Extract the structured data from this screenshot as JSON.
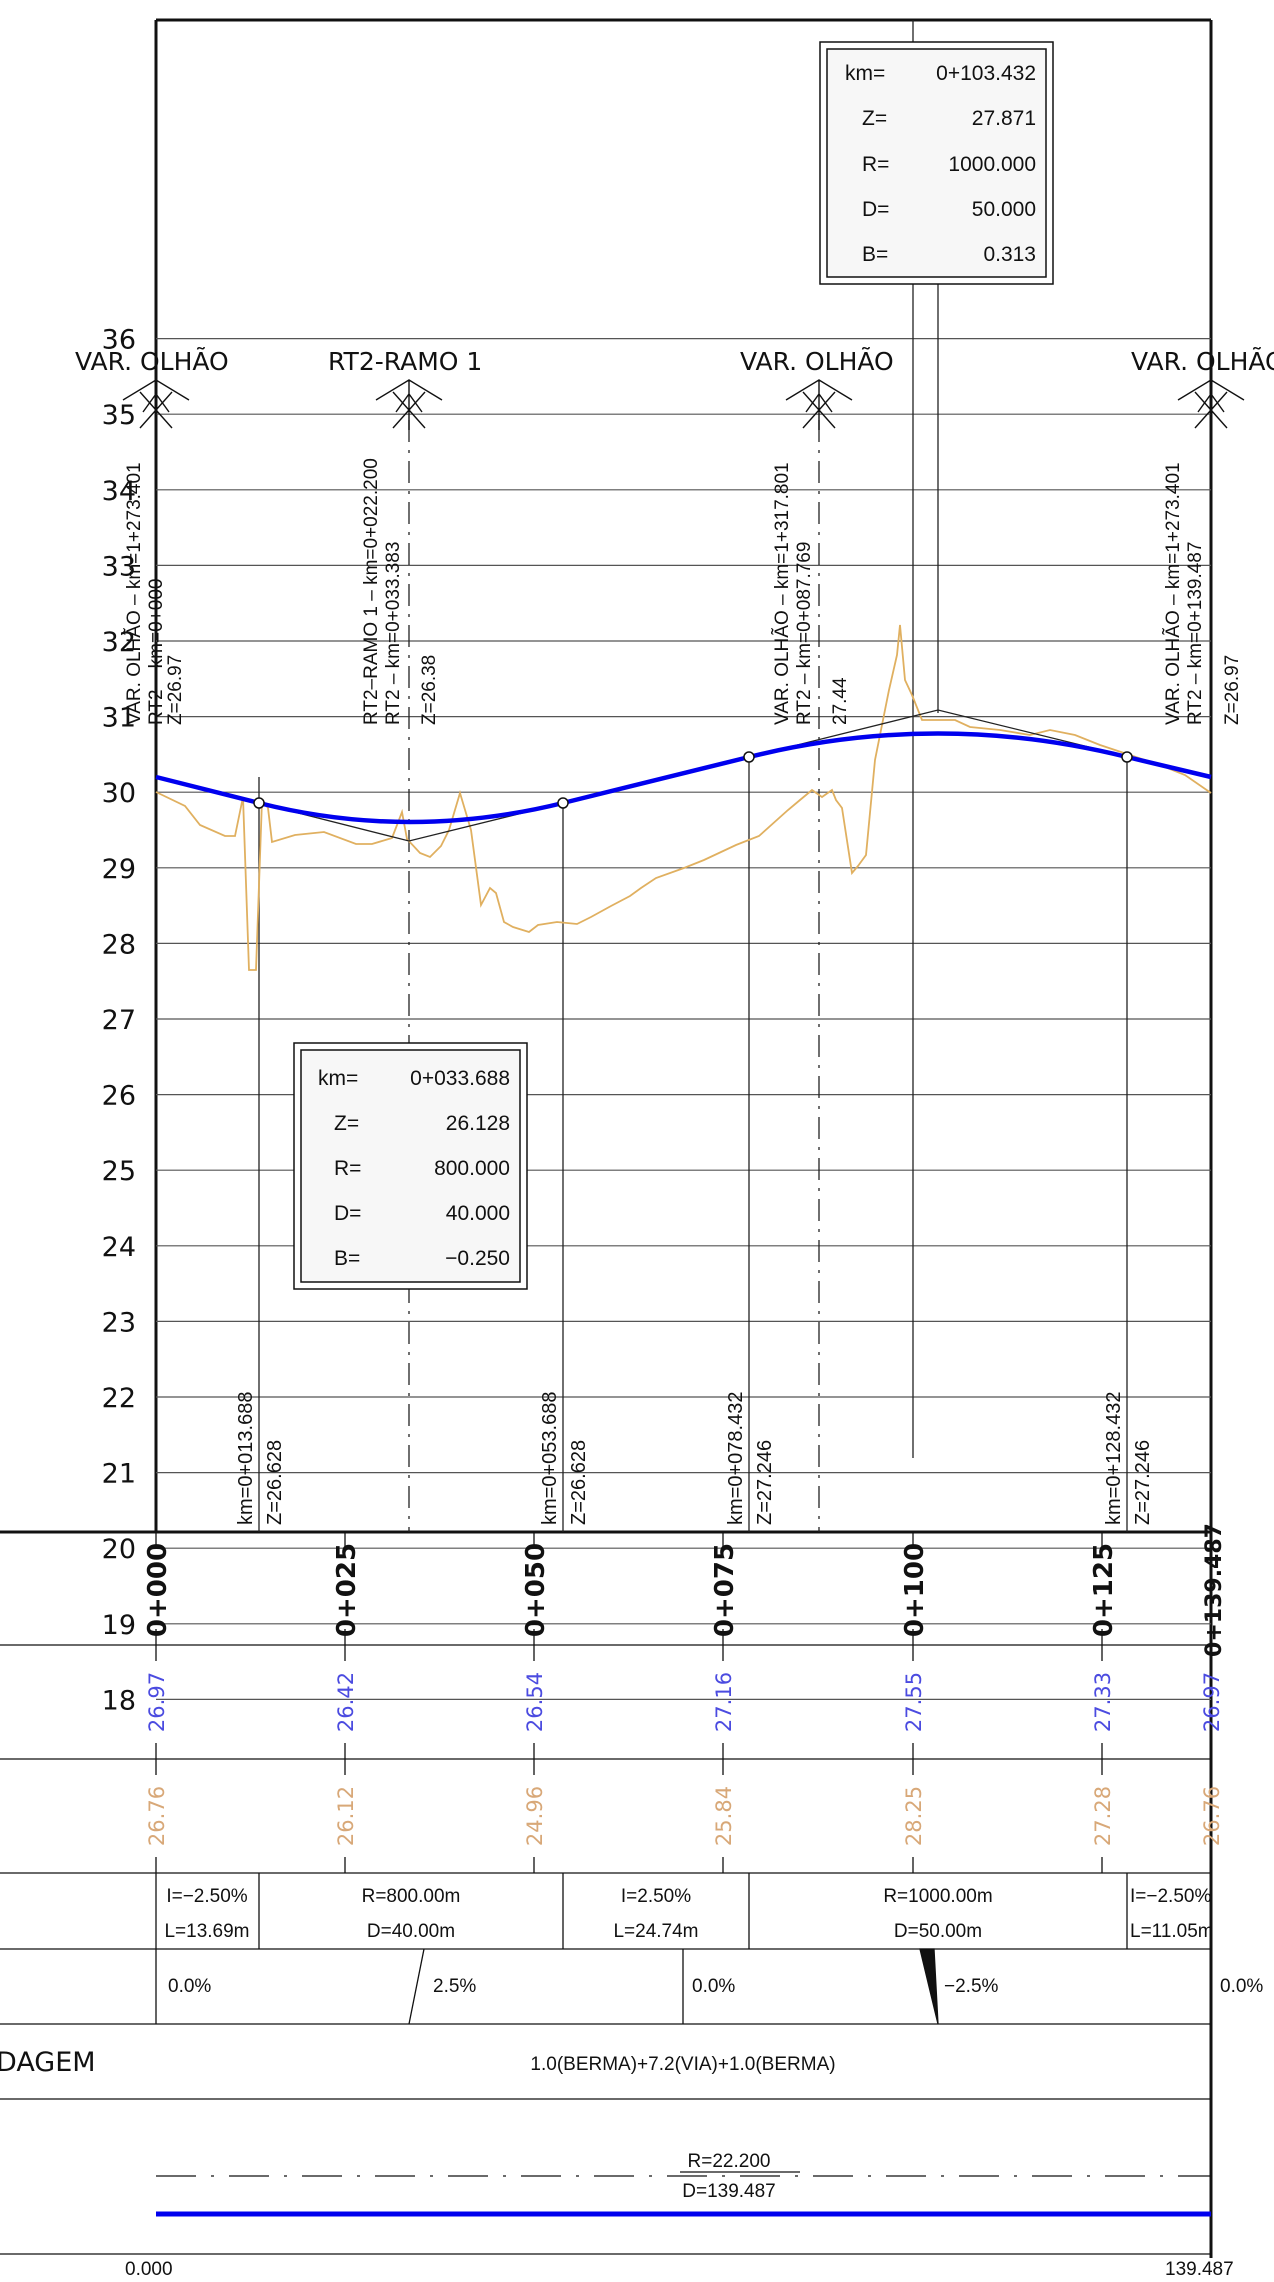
{
  "y_axis_labels": [
    "36",
    "35",
    "34",
    "33",
    "32",
    "31",
    "30",
    "29",
    "28",
    "27",
    "26",
    "25",
    "24",
    "23",
    "22",
    "21",
    "20",
    "19",
    "18"
  ],
  "colors": {
    "grade_line": "#0000ee",
    "terrain_line": "#e0b060",
    "grade_text": "#4b4be0",
    "terrain_text": "#d8a878",
    "ink": "#111111"
  },
  "top_labels": {
    "start": "VAR. OLHÃO",
    "ramo": "RT2-RAMO 1",
    "mid": "VAR. OLHÃO",
    "end": "VAR. OLHÃO"
  },
  "vertical_annotations": {
    "start": [
      "VAR. OLHÃO – km=1+273.401",
      "RT2 – km=0+000",
      "Z=26.97"
    ],
    "ramo": [
      "RT2–RAMO 1 – km=0+022.200",
      "RT2 – km=0+033.383",
      "Z=26.38"
    ],
    "mid": [
      "VAR. OLHÃO – km=1+317.801",
      "RT2 – km=0+087.769",
      "27.44"
    ],
    "end": [
      "VAR. OLHÃO – km=1+273.401",
      "RT2 – km=0+139.487",
      "Z=26.97"
    ]
  },
  "curve_boxes": [
    {
      "km_label": "km=",
      "km": "0+033.688",
      "z_label": "Z=",
      "z": "26.128",
      "r_label": "R=",
      "r": "800.000",
      "d_label": "D=",
      "d": "40.000",
      "b_label": "B=",
      "b": "−0.250"
    },
    {
      "km_label": "km=",
      "km": "0+103.432",
      "z_label": "Z=",
      "z": "27.871",
      "r_label": "R=",
      "r": "1000.000",
      "d_label": "D=",
      "d": "50.000",
      "b_label": "B=",
      "b": "0.313"
    }
  ],
  "tangent_points": [
    {
      "km": "km=0+013.688",
      "z": "Z=26.628"
    },
    {
      "km": "km=0+053.688",
      "z": "Z=26.628"
    },
    {
      "km": "km=0+078.432",
      "z": "Z=27.246"
    },
    {
      "km": "km=0+128.432",
      "z": "Z=27.246"
    }
  ],
  "stations": [
    "0+000",
    "0+025",
    "0+050",
    "0+075",
    "0+100",
    "0+125",
    "0+139.487"
  ],
  "grade_elevations": [
    "26.97",
    "26.42",
    "26.54",
    "27.16",
    "27.55",
    "27.33",
    "26.97"
  ],
  "terrain_elevations": [
    "26.76",
    "26.12",
    "24.96",
    "25.84",
    "28.25",
    "27.28",
    "26.76"
  ],
  "alignment_segments": [
    {
      "line1": "I=−2.50%",
      "line2": "L=13.69m"
    },
    {
      "line1": "R=800.00m",
      "line2": "D=40.00m"
    },
    {
      "line1": "I=2.50%",
      "line2": "L=24.74m"
    },
    {
      "line1": "R=1000.00m",
      "line2": "D=50.00m"
    },
    {
      "line1": "I=−2.50%",
      "line2": "L=11.05m"
    }
  ],
  "superelevation": [
    "0.0%",
    "2.5%",
    "0.0%",
    "−2.5%",
    "0.0%"
  ],
  "section_row": {
    "label": "DAGEM",
    "value": "1.0(BERMA)+7.2(VIA)+1.0(BERMA)"
  },
  "horizontal_curve": {
    "r": "R=22.200",
    "d": "D=139.487"
  },
  "axis_ends": {
    "start": "0.000",
    "end": "139.487"
  }
}
